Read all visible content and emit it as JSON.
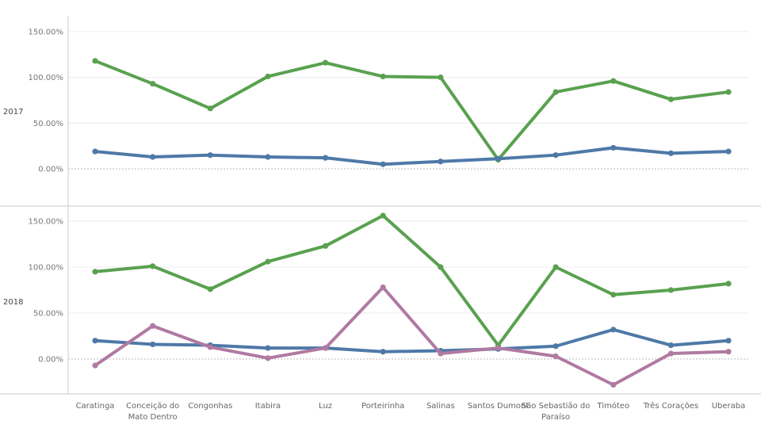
{
  "chart_data": {
    "type": "line",
    "categories": [
      "Caratinga",
      "Conceição do Mato Dentro",
      "Congonhas",
      "Itabira",
      "Luz",
      "Porteirinha",
      "Salinas",
      "Santos Dumont",
      "São Sebastião do Paraíso",
      "Timóteo",
      "Três Corações",
      "Uberaba"
    ],
    "y_ticks": [
      "150.00%",
      "100.00%",
      "50.00%",
      "0.00%"
    ],
    "ylim": [
      -40,
      160
    ],
    "grid": true,
    "zero_line": "dashed",
    "panels": [
      {
        "row_label": "2017",
        "series": [
          {
            "color": "#59a14f",
            "values": [
              118,
              93,
              66,
              101,
              116,
              101,
              100,
              10,
              84,
              96,
              76,
              84
            ]
          },
          {
            "color": "#4e79a7",
            "values": [
              19,
              13,
              15,
              13,
              12,
              5,
              8,
              11,
              15,
              23,
              17,
              19
            ]
          }
        ]
      },
      {
        "row_label": "2018",
        "series": [
          {
            "color": "#59a14f",
            "values": [
              95,
              101,
              76,
              106,
              123,
              156,
              100,
              15,
              100,
              70,
              75,
              82
            ]
          },
          {
            "color": "#4e79a7",
            "values": [
              20,
              16,
              15,
              12,
              12,
              8,
              9,
              11,
              14,
              32,
              15,
              20
            ]
          },
          {
            "color": "#b07aa1",
            "values": [
              -7,
              36,
              13,
              1,
              12,
              78,
              6,
              12,
              3,
              -28,
              6,
              8
            ]
          }
        ]
      }
    ]
  }
}
